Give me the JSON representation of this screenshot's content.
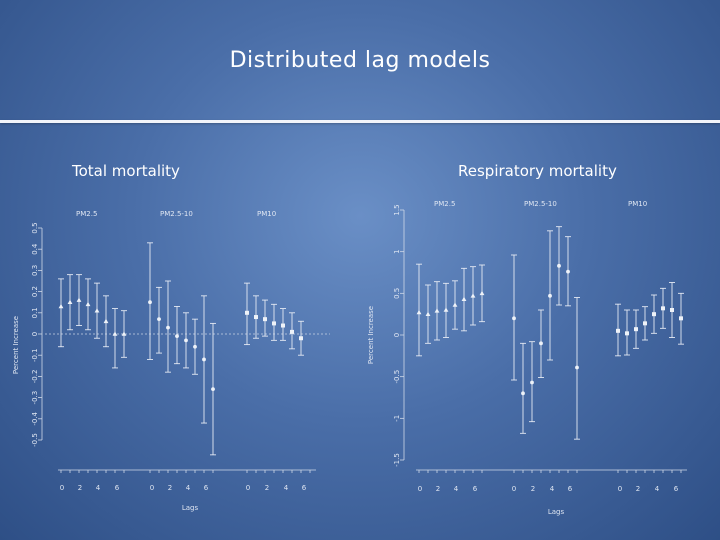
{
  "slide": {
    "title": "Distributed lag models"
  },
  "chart_data": [
    {
      "type": "scatter",
      "title": "Total mortality",
      "xlabel": "Lags",
      "ylabel": "Percent Increase",
      "ylim": [
        -0.5,
        0.5
      ],
      "yticks": [
        "-0.5",
        "-0.4",
        "-0.3",
        "-0.2",
        "-0.1",
        "0",
        "0.1",
        "0.2",
        "0.3",
        "0.4",
        "0.5"
      ],
      "reference_line": 0,
      "groups": [
        {
          "name": "PM2.5",
          "tick_labels": [
            "0",
            "2",
            "4",
            "6"
          ],
          "points": [
            {
              "lag": 0,
              "y": 0.13,
              "lo": -0.06,
              "hi": 0.26
            },
            {
              "lag": 1,
              "y": 0.15,
              "lo": 0.02,
              "hi": 0.28
            },
            {
              "lag": 2,
              "y": 0.16,
              "lo": 0.04,
              "hi": 0.28
            },
            {
              "lag": 3,
              "y": 0.14,
              "lo": 0.02,
              "hi": 0.26
            },
            {
              "lag": 4,
              "y": 0.11,
              "lo": -0.02,
              "hi": 0.24
            },
            {
              "lag": 5,
              "y": 0.06,
              "lo": -0.06,
              "hi": 0.18
            },
            {
              "lag": 6,
              "y": 0.0,
              "lo": -0.16,
              "hi": 0.12
            },
            {
              "lag": 7,
              "y": 0.0,
              "lo": -0.11,
              "hi": 0.11
            }
          ]
        },
        {
          "name": "PM2.5-10",
          "tick_labels": [
            "0",
            "2",
            "4",
            "6"
          ],
          "points": [
            {
              "lag": 0,
              "y": 0.15,
              "lo": -0.12,
              "hi": 0.43
            },
            {
              "lag": 1,
              "y": 0.07,
              "lo": -0.09,
              "hi": 0.22
            },
            {
              "lag": 2,
              "y": 0.03,
              "lo": -0.18,
              "hi": 0.25
            },
            {
              "lag": 3,
              "y": -0.01,
              "lo": -0.14,
              "hi": 0.13
            },
            {
              "lag": 4,
              "y": -0.03,
              "lo": -0.16,
              "hi": 0.1
            },
            {
              "lag": 5,
              "y": -0.06,
              "lo": -0.19,
              "hi": 0.07
            },
            {
              "lag": 6,
              "y": -0.12,
              "lo": -0.42,
              "hi": 0.18
            },
            {
              "lag": 7,
              "y": -0.26,
              "lo": -0.57,
              "hi": 0.05
            }
          ]
        },
        {
          "name": "PM10",
          "tick_labels": [
            "0",
            "2",
            "4",
            "6"
          ],
          "points": [
            {
              "lag": 0,
              "y": 0.1,
              "lo": -0.05,
              "hi": 0.24
            },
            {
              "lag": 1,
              "y": 0.08,
              "lo": -0.02,
              "hi": 0.18
            },
            {
              "lag": 2,
              "y": 0.07,
              "lo": -0.01,
              "hi": 0.16
            },
            {
              "lag": 3,
              "y": 0.05,
              "lo": -0.03,
              "hi": 0.14
            },
            {
              "lag": 4,
              "y": 0.04,
              "lo": -0.03,
              "hi": 0.12
            },
            {
              "lag": 5,
              "y": 0.01,
              "lo": -0.07,
              "hi": 0.1
            },
            {
              "lag": 6,
              "y": -0.02,
              "lo": -0.1,
              "hi": 0.06
            }
          ]
        }
      ]
    },
    {
      "type": "scatter",
      "title": "Respiratory mortality",
      "xlabel": "Lags",
      "ylabel": "Percent Increase",
      "ylim": [
        -1.5,
        1.5
      ],
      "yticks": [
        "-1.5",
        "-1",
        "-0.5",
        "0",
        "0.5",
        "1",
        "1.5"
      ],
      "reference_line": null,
      "groups": [
        {
          "name": "PM2.5",
          "tick_labels": [
            "0",
            "2",
            "4",
            "6"
          ],
          "points": [
            {
              "lag": 0,
              "y": 0.27,
              "lo": -0.25,
              "hi": 0.85
            },
            {
              "lag": 1,
              "y": 0.25,
              "lo": -0.1,
              "hi": 0.6
            },
            {
              "lag": 2,
              "y": 0.29,
              "lo": -0.06,
              "hi": 0.64
            },
            {
              "lag": 3,
              "y": 0.3,
              "lo": -0.03,
              "hi": 0.62
            },
            {
              "lag": 4,
              "y": 0.36,
              "lo": 0.07,
              "hi": 0.65
            },
            {
              "lag": 5,
              "y": 0.43,
              "lo": 0.05,
              "hi": 0.8
            },
            {
              "lag": 6,
              "y": 0.47,
              "lo": 0.12,
              "hi": 0.82
            },
            {
              "lag": 7,
              "y": 0.5,
              "lo": 0.16,
              "hi": 0.84
            }
          ]
        },
        {
          "name": "PM2.5-10",
          "tick_labels": [
            "0",
            "2",
            "4",
            "6"
          ],
          "points": [
            {
              "lag": 0,
              "y": 0.2,
              "lo": -0.54,
              "hi": 0.96
            },
            {
              "lag": 1,
              "y": -0.7,
              "lo": -1.18,
              "hi": -0.1
            },
            {
              "lag": 2,
              "y": -0.57,
              "lo": -1.04,
              "hi": -0.08
            },
            {
              "lag": 3,
              "y": -0.1,
              "lo": -0.51,
              "hi": 0.3
            },
            {
              "lag": 4,
              "y": 0.47,
              "lo": -0.3,
              "hi": 1.25
            },
            {
              "lag": 5,
              "y": 0.83,
              "lo": 0.36,
              "hi": 1.3
            },
            {
              "lag": 6,
              "y": 0.76,
              "lo": 0.35,
              "hi": 1.18
            },
            {
              "lag": 7,
              "y": -0.39,
              "lo": -1.25,
              "hi": 0.45
            }
          ]
        },
        {
          "name": "PM10",
          "tick_labels": [
            "0",
            "2",
            "4",
            "6"
          ],
          "points": [
            {
              "lag": 0,
              "y": 0.05,
              "lo": -0.25,
              "hi": 0.37
            },
            {
              "lag": 1,
              "y": 0.02,
              "lo": -0.24,
              "hi": 0.3
            },
            {
              "lag": 2,
              "y": 0.07,
              "lo": -0.16,
              "hi": 0.3
            },
            {
              "lag": 3,
              "y": 0.14,
              "lo": -0.06,
              "hi": 0.34
            },
            {
              "lag": 4,
              "y": 0.25,
              "lo": 0.02,
              "hi": 0.48
            },
            {
              "lag": 5,
              "y": 0.32,
              "lo": 0.08,
              "hi": 0.56
            },
            {
              "lag": 6,
              "y": 0.3,
              "lo": -0.03,
              "hi": 0.63
            },
            {
              "lag": 7,
              "y": 0.2,
              "lo": -0.11,
              "hi": 0.5
            }
          ]
        }
      ]
    }
  ]
}
